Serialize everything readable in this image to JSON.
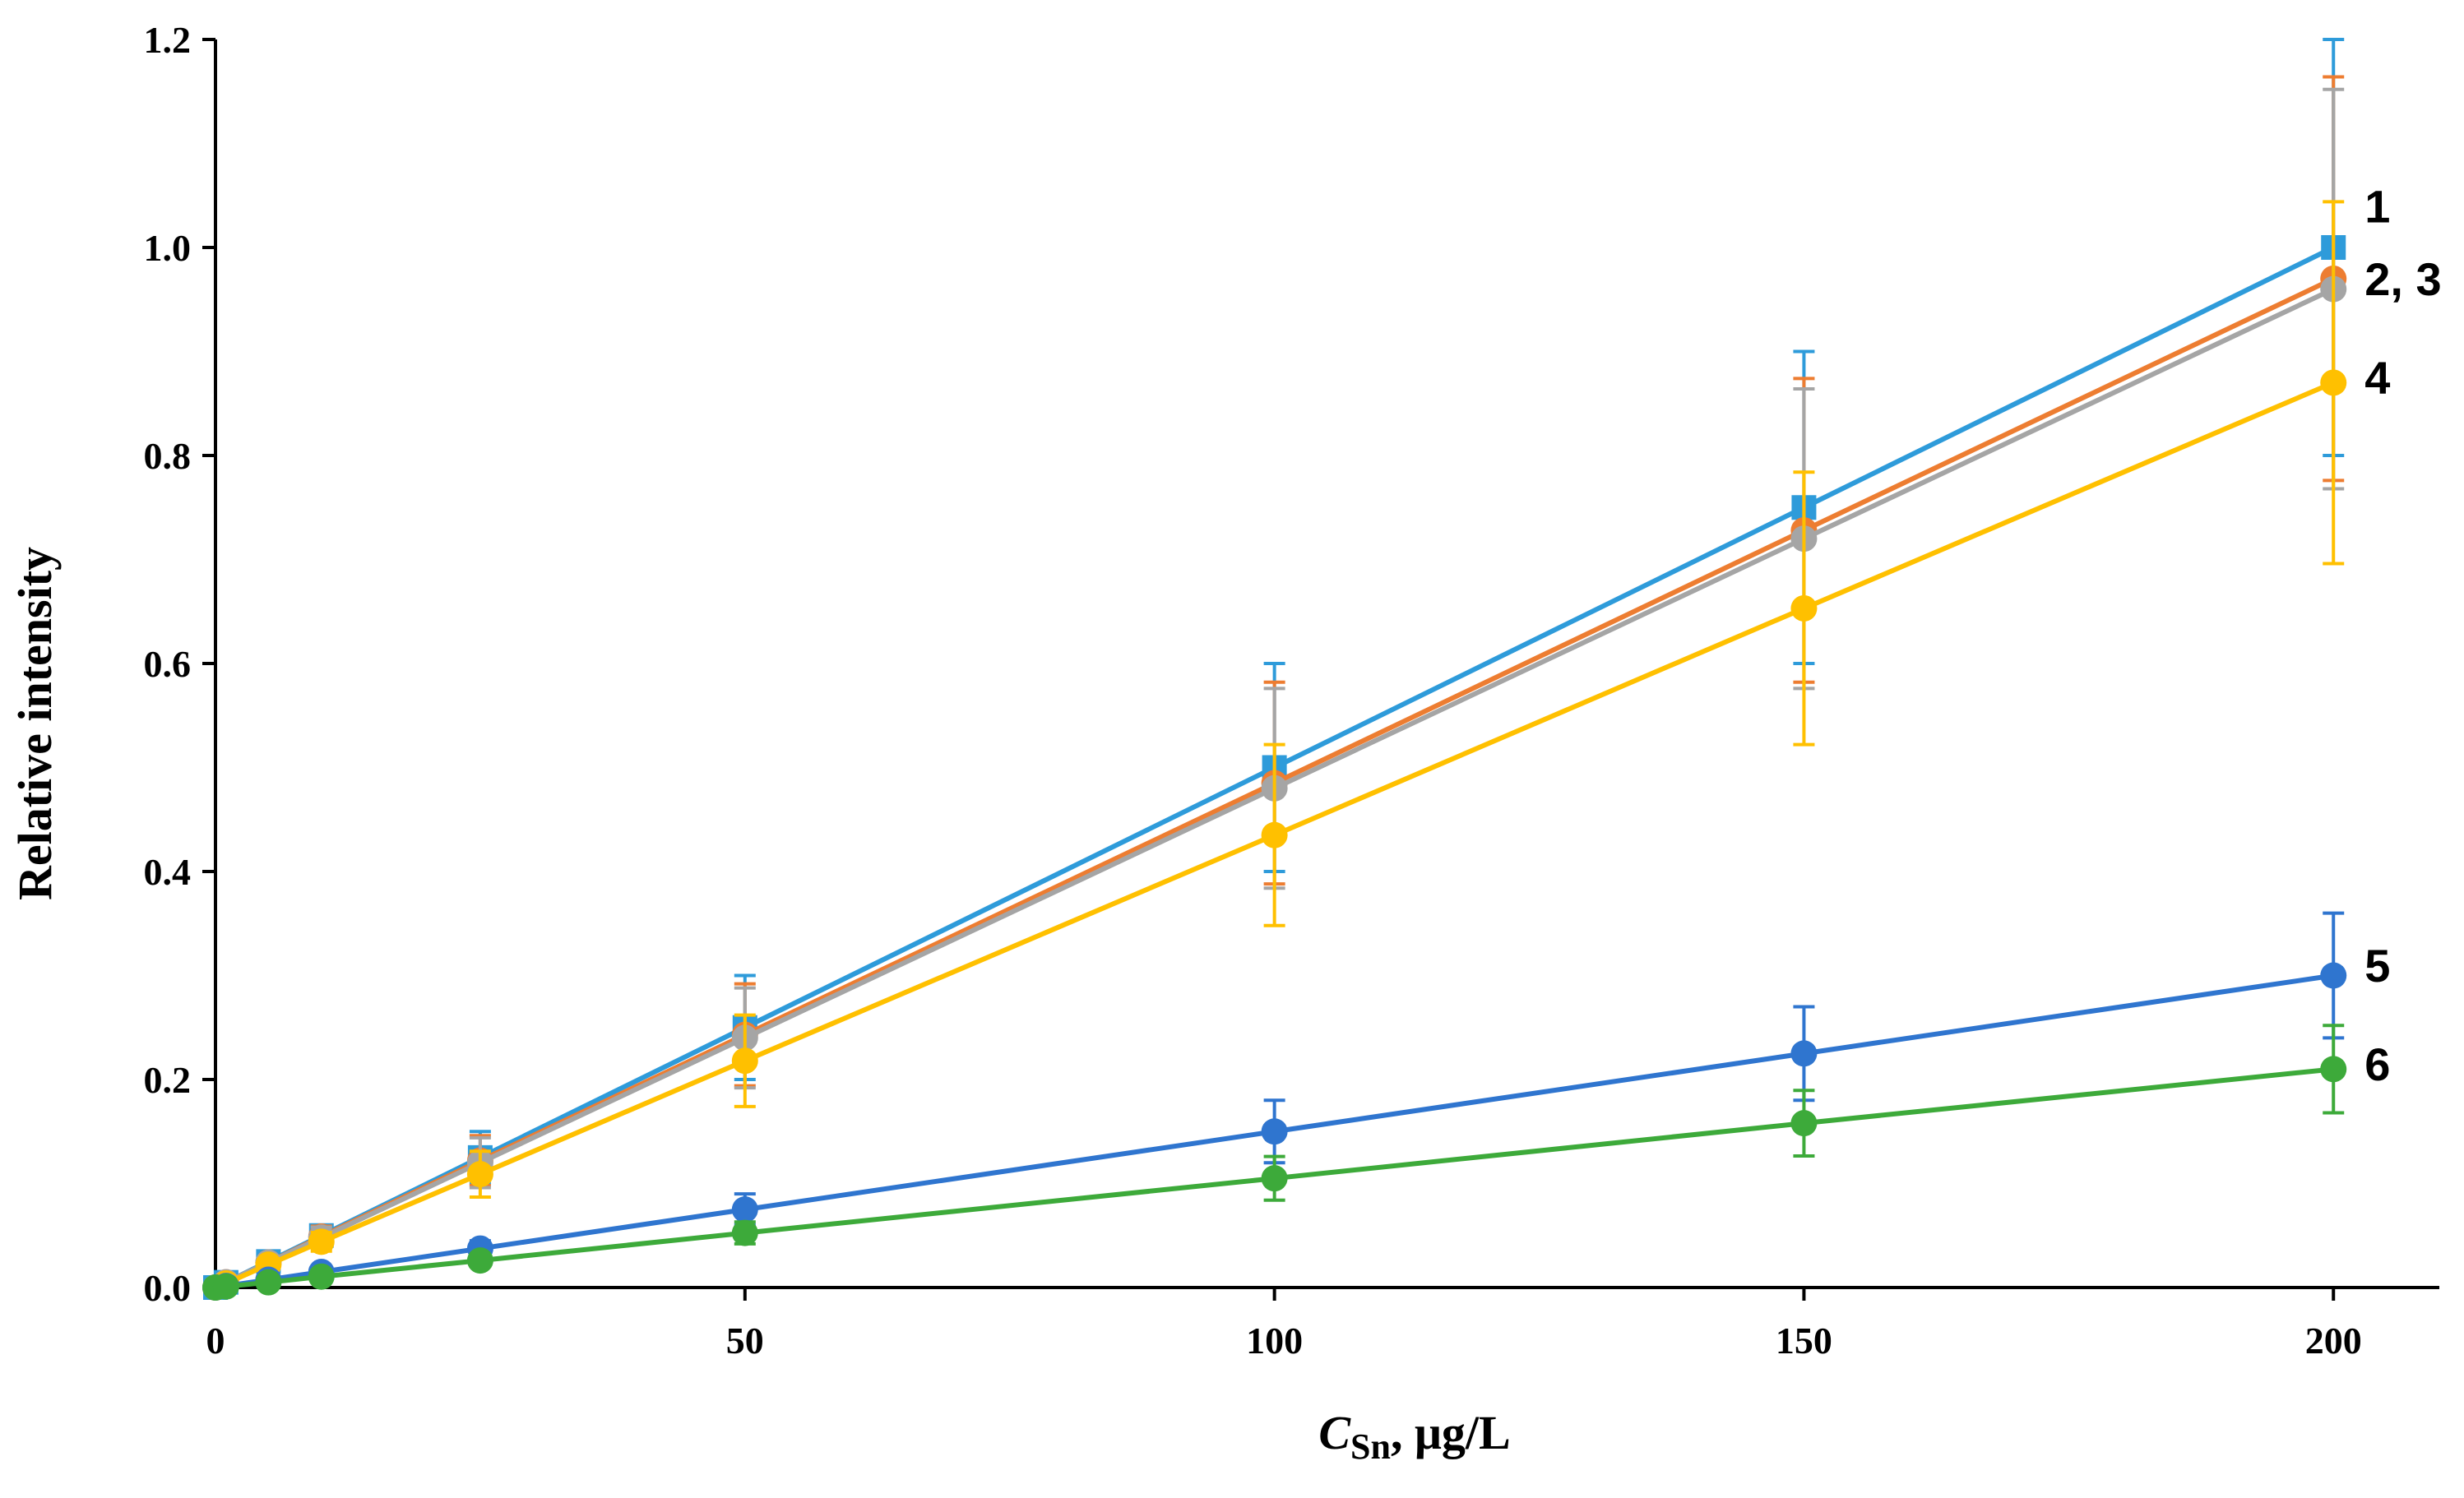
{
  "chart_data": {
    "type": "line",
    "title": "",
    "xlabel": {
      "italic": "C",
      "sub": "Sn",
      "rest": ", μg/L"
    },
    "ylabel": "Relative intensity",
    "xlim": [
      0,
      210
    ],
    "ylim": [
      0,
      1.2
    ],
    "x_ticks": [
      0,
      50,
      100,
      150,
      200
    ],
    "x_tick_labels": [
      "0",
      "50",
      "100",
      "150",
      "200"
    ],
    "y_ticks": [
      0,
      0.2,
      0.4,
      0.6,
      0.8,
      1.0,
      1.2
    ],
    "y_tick_labels": [
      "0.0",
      "0.2",
      "0.4",
      "0.6",
      "0.8",
      "1.0",
      "1.2"
    ],
    "grid": false,
    "x": [
      0,
      1,
      5,
      10,
      25,
      50,
      100,
      150,
      200
    ],
    "series": [
      {
        "name": "1",
        "color": "#2E9BDA",
        "marker": "square",
        "values": [
          0,
          0.005,
          0.025,
          0.05,
          0.125,
          0.25,
          0.5,
          0.75,
          1.0
        ],
        "errors": [
          0,
          0.001,
          0.005,
          0.01,
          0.025,
          0.05,
          0.1,
          0.15,
          0.2
        ]
      },
      {
        "name": "2",
        "color": "#ED7D31",
        "marker": "circle",
        "values": [
          0,
          0.005,
          0.024,
          0.049,
          0.122,
          0.243,
          0.485,
          0.728,
          0.97
        ],
        "errors": [
          0,
          0.001,
          0.005,
          0.01,
          0.024,
          0.049,
          0.097,
          0.146,
          0.194
        ]
      },
      {
        "name": "3",
        "color": "#A5A5A5",
        "marker": "circle",
        "values": [
          0,
          0.005,
          0.024,
          0.048,
          0.12,
          0.24,
          0.48,
          0.72,
          0.96
        ],
        "errors": [
          0,
          0.001,
          0.005,
          0.01,
          0.024,
          0.048,
          0.096,
          0.144,
          0.192
        ]
      },
      {
        "name": "4",
        "color": "#FFC000",
        "marker": "circle",
        "values": [
          0,
          0.004,
          0.022,
          0.044,
          0.109,
          0.218,
          0.435,
          0.653,
          0.87
        ],
        "errors": [
          0,
          0.001,
          0.004,
          0.009,
          0.022,
          0.044,
          0.087,
          0.131,
          0.174
        ]
      },
      {
        "name": "5",
        "color": "#2F75CF",
        "marker": "circle",
        "values": [
          0,
          0.0015,
          0.0075,
          0.015,
          0.0375,
          0.075,
          0.15,
          0.225,
          0.3
        ],
        "errors": [
          0,
          0.0003,
          0.0015,
          0.003,
          0.0075,
          0.015,
          0.03,
          0.045,
          0.06
        ]
      },
      {
        "name": "6",
        "color": "#3DAA3A",
        "marker": "circle",
        "values": [
          0,
          0.001,
          0.005,
          0.0105,
          0.026,
          0.0525,
          0.105,
          0.158,
          0.21
        ],
        "errors": [
          0,
          0.0002,
          0.001,
          0.002,
          0.005,
          0.0105,
          0.021,
          0.0315,
          0.042
        ]
      }
    ],
    "end_labels": [
      {
        "text": "1",
        "y": 1.04
      },
      {
        "text": "2, 3",
        "y": 0.97
      },
      {
        "text": "4",
        "y": 0.875
      },
      {
        "text": "5",
        "y": 0.31
      },
      {
        "text": "6",
        "y": 0.215
      }
    ]
  }
}
